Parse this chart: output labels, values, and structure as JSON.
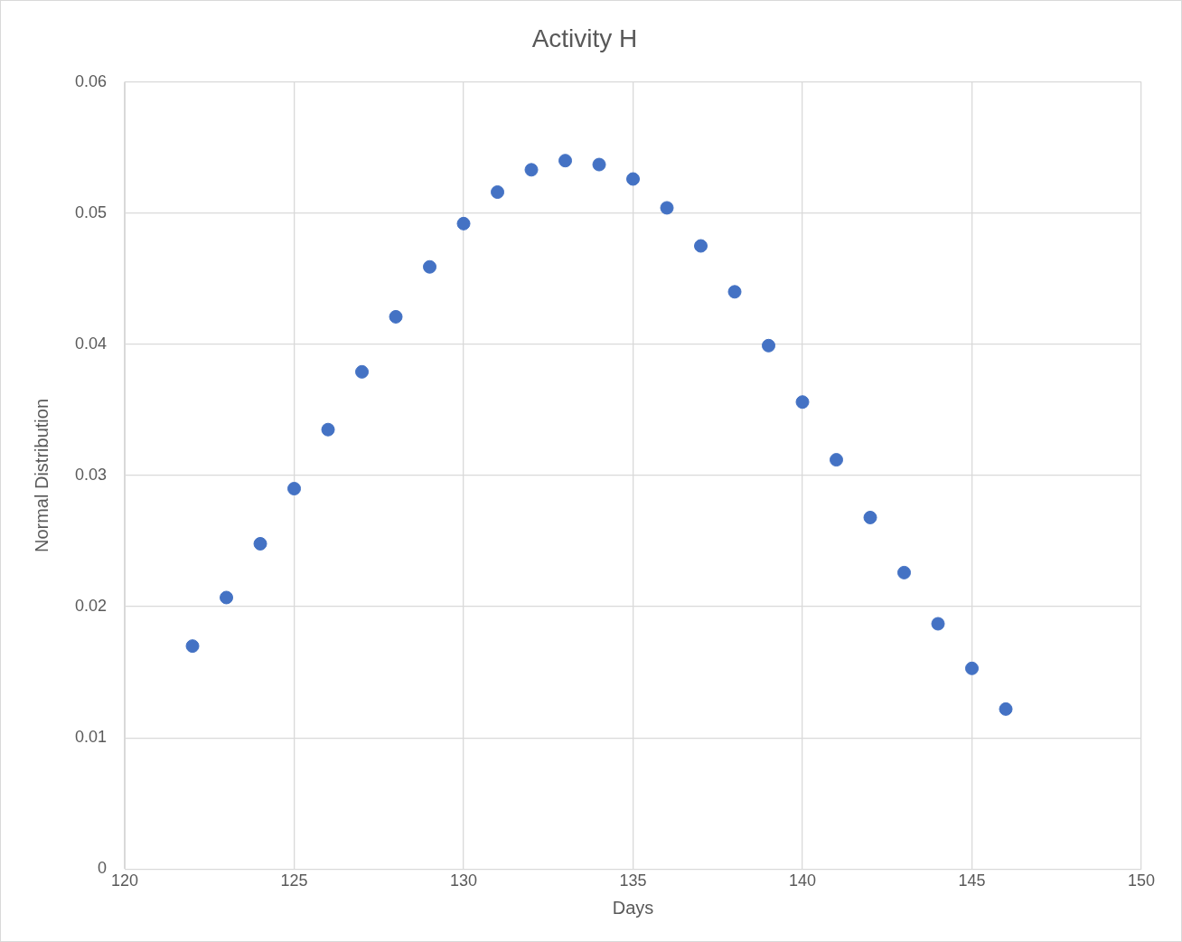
{
  "chart_data": {
    "type": "scatter",
    "title": "Activity H",
    "xlabel": "Days",
    "ylabel": "Normal Distribution",
    "x": [
      122,
      123,
      124,
      125,
      126,
      127,
      128,
      129,
      130,
      131,
      132,
      133,
      134,
      135,
      136,
      137,
      138,
      139,
      140,
      141,
      142,
      143,
      144,
      145,
      146
    ],
    "series": [
      {
        "color": "#4472c4",
        "values": [
          0.017,
          0.0207,
          0.0248,
          0.029,
          0.0335,
          0.0379,
          0.0421,
          0.0459,
          0.0492,
          0.0516,
          0.0533,
          0.054,
          0.0537,
          0.0526,
          0.0504,
          0.0475,
          0.044,
          0.0399,
          0.0356,
          0.0312,
          0.0268,
          0.0226,
          0.0187,
          0.0153,
          0.0122
        ]
      }
    ],
    "xlim": [
      120,
      150
    ],
    "xticks": [
      120,
      125,
      130,
      135,
      140,
      145,
      150
    ],
    "ylim": [
      0,
      0.06
    ],
    "yticks": [
      0,
      0.01,
      0.02,
      0.03,
      0.04,
      0.05,
      0.06
    ],
    "grid": true,
    "legend": false,
    "marker": "circle"
  }
}
